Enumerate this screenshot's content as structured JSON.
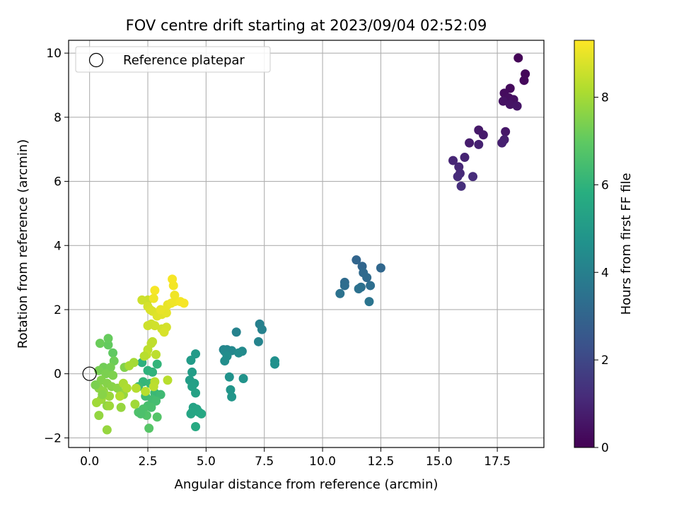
{
  "chart_data": {
    "type": "scatter",
    "title": "FOV centre drift starting at 2023/09/04 02:52:09",
    "xlabel": "Angular distance from reference (arcmin)",
    "ylabel": "Rotation from reference (arcmin)",
    "xlim": [
      -0.9,
      19.5
    ],
    "ylim": [
      -2.3,
      10.4
    ],
    "xticks": [
      0.0,
      2.5,
      5.0,
      7.5,
      10.0,
      12.5,
      15.0,
      17.5
    ],
    "xtick_labels": [
      "0.0",
      "2.5",
      "5.0",
      "7.5",
      "10.0",
      "12.5",
      "15.0",
      "17.5"
    ],
    "yticks": [
      -2,
      0,
      2,
      4,
      6,
      8,
      10
    ],
    "ytick_labels": [
      "−2",
      "0",
      "2",
      "4",
      "6",
      "8",
      "10"
    ],
    "grid": true,
    "legend": {
      "position": "top-left",
      "entries": [
        "Reference platepar"
      ]
    },
    "reference_point": {
      "x": 0.0,
      "y": 0.0
    },
    "colorbar": {
      "label": "Hours from first FF file",
      "colormap": "viridis",
      "range": [
        0,
        9.3
      ],
      "ticks": [
        0,
        2,
        4,
        6,
        8
      ],
      "tick_labels": [
        "0",
        "2",
        "4",
        "6",
        "8"
      ]
    },
    "points": [
      [
        18.4,
        9.85,
        0.1
      ],
      [
        18.7,
        9.35,
        0.15
      ],
      [
        18.65,
        9.15,
        0.2
      ],
      [
        18.05,
        8.9,
        0.25
      ],
      [
        17.8,
        8.75,
        0.3
      ],
      [
        18.0,
        8.6,
        0.35
      ],
      [
        18.2,
        8.55,
        0.4
      ],
      [
        17.75,
        8.5,
        0.45
      ],
      [
        18.05,
        8.4,
        0.5
      ],
      [
        18.35,
        8.35,
        0.55
      ],
      [
        17.85,
        7.55,
        0.6
      ],
      [
        16.7,
        7.6,
        0.65
      ],
      [
        16.9,
        7.45,
        0.7
      ],
      [
        16.3,
        7.2,
        0.75
      ],
      [
        17.8,
        7.3,
        0.8
      ],
      [
        17.7,
        7.2,
        0.85
      ],
      [
        16.7,
        7.15,
        0.9
      ],
      [
        16.1,
        6.75,
        0.95
      ],
      [
        15.6,
        6.65,
        1.0
      ],
      [
        15.85,
        6.45,
        1.05
      ],
      [
        15.9,
        6.25,
        1.1
      ],
      [
        15.8,
        6.15,
        1.15
      ],
      [
        16.45,
        6.15,
        1.2
      ],
      [
        15.95,
        5.85,
        1.25
      ],
      [
        11.45,
        3.55,
        3.0
      ],
      [
        11.7,
        3.35,
        3.05
      ],
      [
        12.5,
        3.3,
        3.1
      ],
      [
        11.75,
        3.15,
        3.15
      ],
      [
        11.9,
        3.0,
        3.2
      ],
      [
        10.95,
        2.85,
        3.25
      ],
      [
        10.95,
        2.75,
        3.3
      ],
      [
        12.05,
        2.75,
        3.35
      ],
      [
        11.65,
        2.7,
        3.4
      ],
      [
        11.55,
        2.65,
        3.45
      ],
      [
        10.75,
        2.5,
        3.5
      ],
      [
        12.0,
        2.25,
        3.55
      ],
      [
        7.3,
        1.55,
        4.0
      ],
      [
        7.4,
        1.38,
        4.05
      ],
      [
        6.3,
        1.3,
        4.1
      ],
      [
        7.25,
        1.0,
        4.15
      ],
      [
        5.75,
        0.75,
        4.2
      ],
      [
        5.9,
        0.75,
        4.25
      ],
      [
        6.1,
        0.72,
        4.3
      ],
      [
        5.8,
        0.7,
        4.35
      ],
      [
        6.55,
        0.7,
        4.4
      ],
      [
        6.4,
        0.65,
        4.45
      ],
      [
        5.9,
        0.55,
        4.5
      ],
      [
        5.8,
        0.4,
        4.55
      ],
      [
        7.95,
        0.4,
        4.6
      ],
      [
        7.95,
        0.3,
        4.65
      ],
      [
        6.0,
        -0.1,
        4.7
      ],
      [
        6.6,
        -0.15,
        4.75
      ],
      [
        6.05,
        -0.5,
        4.8
      ],
      [
        6.1,
        -0.72,
        4.85
      ],
      [
        4.55,
        0.62,
        5.0
      ],
      [
        4.35,
        0.42,
        5.05
      ],
      [
        4.4,
        0.05,
        5.1
      ],
      [
        4.3,
        -0.2,
        5.15
      ],
      [
        4.5,
        -0.3,
        5.2
      ],
      [
        4.4,
        -0.4,
        5.25
      ],
      [
        4.55,
        -0.6,
        5.3
      ],
      [
        4.45,
        -1.05,
        5.35
      ],
      [
        4.6,
        -1.1,
        5.4
      ],
      [
        4.7,
        -1.2,
        5.45
      ],
      [
        4.4,
        -1.2,
        5.5
      ],
      [
        4.8,
        -1.25,
        5.55
      ],
      [
        4.55,
        -1.65,
        5.6
      ],
      [
        4.35,
        -1.25,
        5.45
      ],
      [
        2.25,
        0.35,
        5.9
      ],
      [
        2.5,
        0.1,
        5.95
      ],
      [
        2.7,
        0.05,
        6.0
      ],
      [
        2.9,
        0.3,
        6.05
      ],
      [
        2.3,
        -0.25,
        6.1
      ],
      [
        2.6,
        -0.3,
        6.15
      ],
      [
        2.8,
        -0.6,
        6.2
      ],
      [
        2.1,
        -0.4,
        6.25
      ],
      [
        3.05,
        -0.65,
        6.3
      ],
      [
        2.4,
        -0.7,
        6.35
      ],
      [
        2.7,
        -0.8,
        6.4
      ],
      [
        2.85,
        -0.85,
        6.45
      ],
      [
        2.5,
        -1.0,
        6.5
      ],
      [
        2.65,
        -1.05,
        6.55
      ],
      [
        2.3,
        -1.1,
        6.6
      ],
      [
        2.1,
        -1.2,
        6.65
      ],
      [
        2.45,
        -1.3,
        6.7
      ],
      [
        2.9,
        -1.35,
        6.75
      ],
      [
        2.55,
        -1.7,
        6.8
      ],
      [
        2.2,
        -1.25,
        6.6
      ],
      [
        1.0,
        0.65,
        7.0
      ],
      [
        0.8,
        0.9,
        7.05
      ],
      [
        0.8,
        1.1,
        7.1
      ],
      [
        0.45,
        0.95,
        7.15
      ],
      [
        1.05,
        0.4,
        7.2
      ],
      [
        0.6,
        0.2,
        7.25
      ],
      [
        0.9,
        0.2,
        7.3
      ],
      [
        0.4,
        0.1,
        7.35
      ],
      [
        0.7,
        0.0,
        7.4
      ],
      [
        1.0,
        -0.05,
        7.45
      ],
      [
        0.5,
        -0.2,
        7.5
      ],
      [
        0.75,
        -0.3,
        7.55
      ],
      [
        0.95,
        -0.4,
        7.6
      ],
      [
        0.4,
        -0.45,
        7.65
      ],
      [
        0.6,
        -0.55,
        7.7
      ],
      [
        1.35,
        -0.6,
        7.75
      ],
      [
        1.45,
        -0.65,
        7.8
      ],
      [
        0.85,
        -0.7,
        7.85
      ],
      [
        0.5,
        -0.8,
        7.9
      ],
      [
        0.3,
        -0.9,
        7.95
      ],
      [
        1.35,
        -1.05,
        7.8
      ],
      [
        0.75,
        -1.0,
        7.7
      ],
      [
        0.4,
        -1.3,
        7.75
      ],
      [
        0.75,
        -1.75,
        7.8
      ],
      [
        1.5,
        0.2,
        7.5
      ],
      [
        0.25,
        -0.35,
        7.4
      ],
      [
        0.55,
        -0.65,
        7.6
      ],
      [
        1.2,
        -0.45,
        7.65
      ],
      [
        0.85,
        -1.0,
        7.9
      ],
      [
        1.95,
        -0.95,
        7.95
      ],
      [
        1.9,
        0.35,
        8.0
      ],
      [
        1.7,
        0.25,
        8.05
      ],
      [
        1.45,
        -0.3,
        8.1
      ],
      [
        1.6,
        -0.45,
        8.15
      ],
      [
        1.3,
        -0.7,
        8.2
      ],
      [
        2.0,
        -0.45,
        8.25
      ],
      [
        2.4,
        -0.55,
        8.3
      ],
      [
        2.5,
        0.75,
        8.35
      ],
      [
        2.65,
        0.95,
        8.4
      ],
      [
        2.45,
        0.6,
        8.45
      ],
      [
        2.7,
        1.0,
        8.4
      ],
      [
        2.85,
        0.6,
        8.35
      ],
      [
        2.35,
        0.55,
        8.3
      ],
      [
        2.8,
        -0.25,
        8.3
      ],
      [
        2.75,
        -0.4,
        8.35
      ],
      [
        3.35,
        -0.2,
        8.3
      ],
      [
        2.65,
        1.55,
        8.6
      ],
      [
        2.8,
        1.5,
        8.65
      ],
      [
        2.5,
        1.5,
        8.6
      ],
      [
        3.1,
        1.4,
        8.65
      ],
      [
        3.3,
        1.45,
        8.7
      ],
      [
        3.2,
        1.3,
        8.75
      ],
      [
        2.5,
        2.3,
        8.55
      ],
      [
        2.25,
        2.3,
        8.6
      ],
      [
        2.5,
        2.1,
        8.7
      ],
      [
        2.6,
        2.0,
        8.75
      ],
      [
        2.7,
        1.95,
        8.8
      ],
      [
        2.9,
        1.8,
        8.85
      ],
      [
        3.1,
        1.85,
        8.9
      ],
      [
        3.3,
        1.9,
        8.95
      ],
      [
        3.05,
        2.0,
        9.0
      ],
      [
        3.35,
        2.15,
        9.0
      ],
      [
        3.5,
        2.2,
        9.05
      ],
      [
        3.65,
        2.25,
        9.1
      ],
      [
        3.9,
        2.25,
        9.15
      ],
      [
        4.05,
        2.2,
        9.2
      ],
      [
        3.65,
        2.45,
        9.1
      ],
      [
        3.6,
        2.75,
        9.15
      ],
      [
        3.55,
        2.95,
        9.2
      ],
      [
        2.8,
        2.6,
        9.2
      ],
      [
        2.75,
        2.35,
        9.1
      ]
    ]
  }
}
